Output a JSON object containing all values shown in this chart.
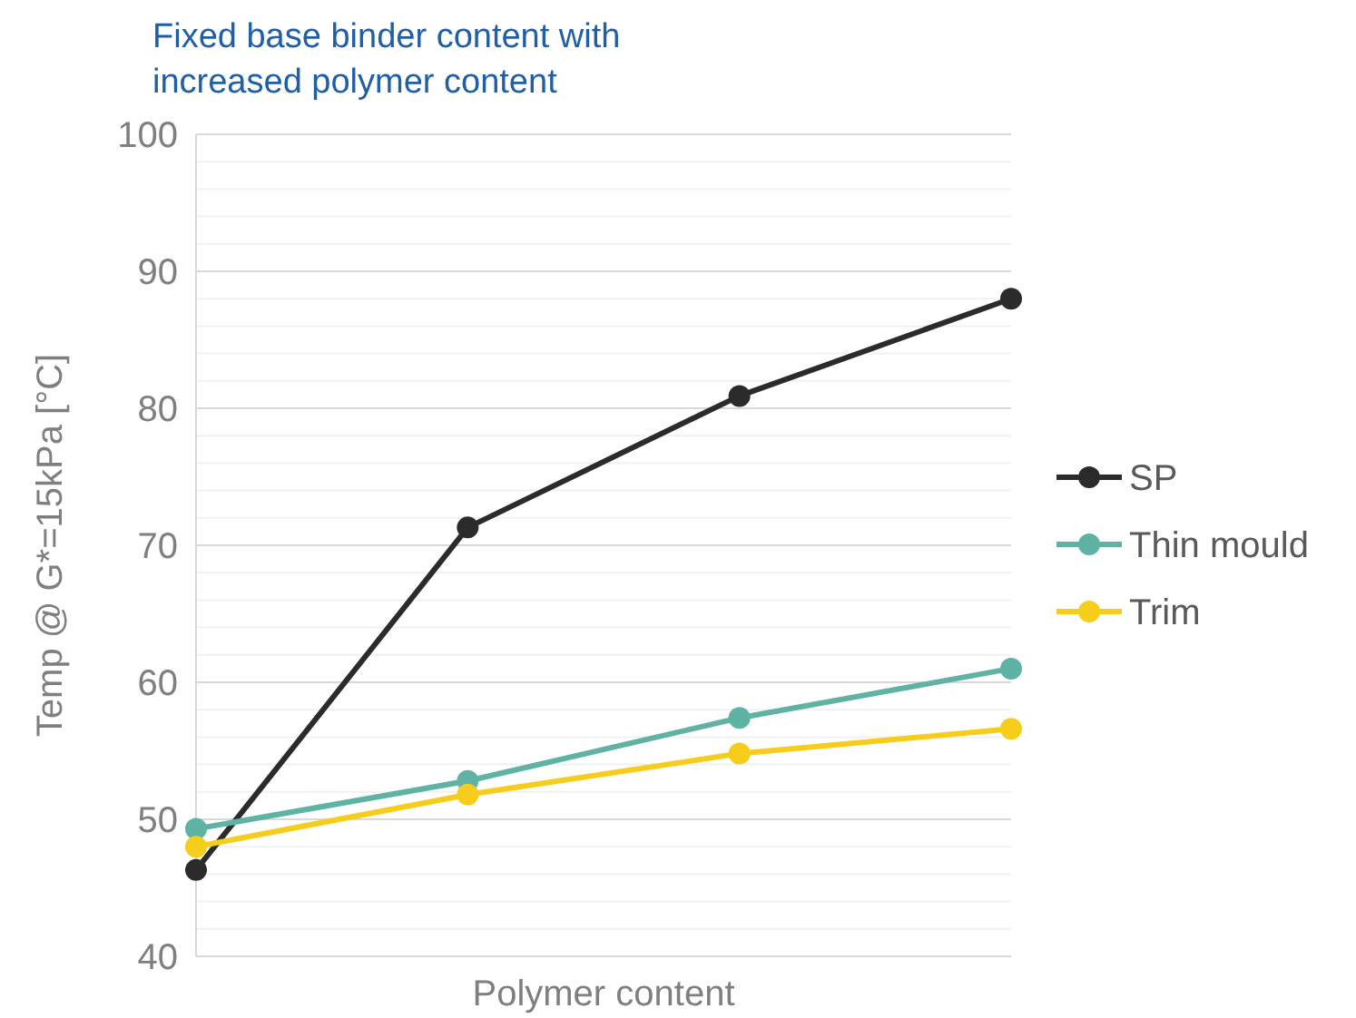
{
  "chart_data": {
    "type": "line",
    "title": "Fixed base binder content with\nincreased polymer content",
    "xlabel": "Polymer content",
    "ylabel": "Temp @ G*=15kPa [°C]",
    "categories": [
      null,
      null,
      null,
      null
    ],
    "series": [
      {
        "name": "SP",
        "color": "#2b2b2b",
        "values": [
          46.3,
          71.3,
          80.9,
          88
        ]
      },
      {
        "name": "Thin mould",
        "color": "#5fb3a5",
        "values": [
          49.3,
          52.8,
          57.4,
          61
        ]
      },
      {
        "name": "Trim",
        "color": "#f5cd1a",
        "values": [
          48,
          51.8,
          54.8,
          56.6
        ]
      }
    ],
    "ylim": [
      40,
      100
    ],
    "yticks": [
      40,
      {
        "value": 42,
        "label": null
      },
      {
        "value": 44,
        "label": null
      },
      {
        "value": 46,
        "label": null
      },
      {
        "value": 48,
        "label": null
      },
      50,
      {
        "value": 52,
        "label": null
      },
      {
        "value": 54,
        "label": null
      },
      {
        "value": 56,
        "label": null
      },
      {
        "value": 58,
        "label": null
      },
      60,
      {
        "value": 62,
        "label": null
      },
      {
        "value": 64,
        "label": null
      },
      {
        "value": 66,
        "label": null
      },
      {
        "value": 68,
        "label": null
      },
      70,
      {
        "value": 72,
        "label": null
      },
      {
        "value": 74,
        "label": null
      },
      {
        "value": 76,
        "label": null
      },
      {
        "value": 78,
        "label": null
      },
      80,
      {
        "value": 82,
        "label": null
      },
      {
        "value": 84,
        "label": null
      },
      {
        "value": 86,
        "label": null
      },
      {
        "value": 88,
        "label": null
      },
      90,
      {
        "value": 92,
        "label": null
      },
      {
        "value": 94,
        "label": null
      },
      {
        "value": 96,
        "label": null
      },
      {
        "value": 98,
        "label": null
      },
      100
    ],
    "grid": true,
    "legend": "right",
    "marker": "circle",
    "line_style": "solid"
  }
}
